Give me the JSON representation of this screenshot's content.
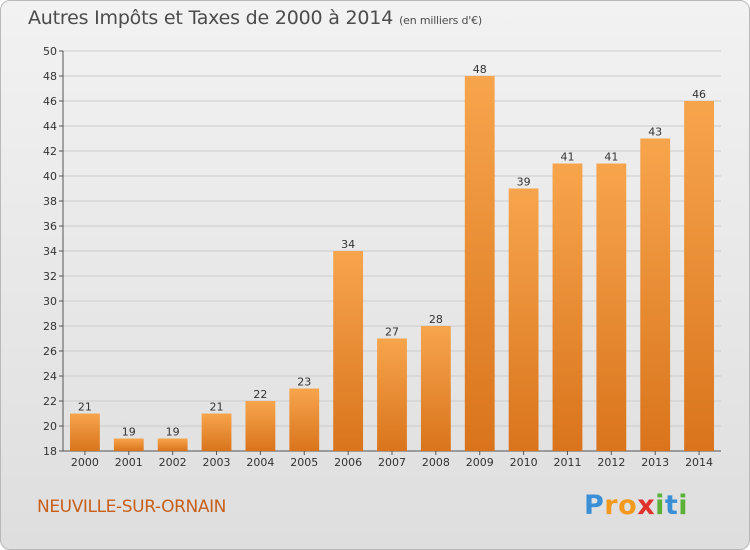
{
  "title": "Autres Impôts et Taxes de 2000 à 2014",
  "subtitle": "(en milliers d'€)",
  "commune": "NEUVILLE-SUR-ORNAIN",
  "logo": {
    "letters": [
      "P",
      "r",
      "o",
      "x",
      "i",
      "t",
      "i"
    ],
    "colors": [
      "#3a8fd6",
      "#f39a1e",
      "#f39a1e",
      "#e0312b",
      "#5ab135",
      "#3a8fd6",
      "#5ab135"
    ]
  },
  "colors": {
    "bar_light": "#f7a54c",
    "bar_dark": "#d9741c",
    "title": "#4c4c4c",
    "commune": "#c8601a",
    "grid": "#cccccc"
  },
  "chart_data": {
    "type": "bar",
    "title": "Autres Impôts et Taxes de 2000 à 2014 (en milliers d'€)",
    "categories": [
      "2000",
      "2001",
      "2002",
      "2003",
      "2004",
      "2005",
      "2006",
      "2007",
      "2008",
      "2009",
      "2010",
      "2011",
      "2012",
      "2013",
      "2014"
    ],
    "values": [
      21,
      19,
      19,
      21,
      22,
      23,
      34,
      27,
      28,
      48,
      39,
      41,
      41,
      43,
      46
    ],
    "ylim": [
      18,
      50
    ],
    "yticks": [
      18,
      20,
      22,
      24,
      26,
      28,
      30,
      32,
      34,
      36,
      38,
      40,
      42,
      44,
      46,
      48,
      50
    ],
    "grid": true,
    "xlabel": "",
    "ylabel": ""
  }
}
